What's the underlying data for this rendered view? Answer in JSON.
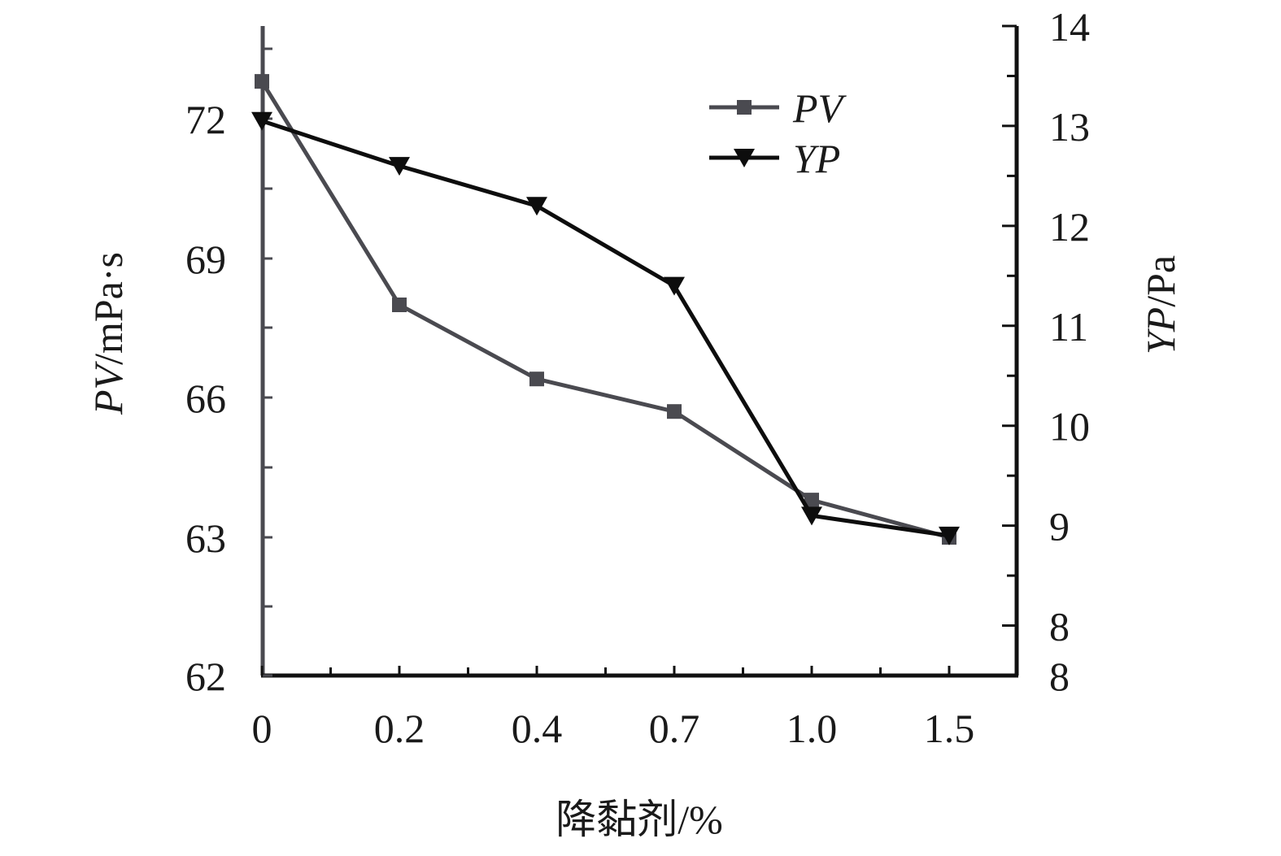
{
  "chart_data": {
    "type": "line",
    "x_categories": [
      "0",
      "0.2",
      "0.4",
      "0.7",
      "1.0",
      "1.5"
    ],
    "xlabel": "降黏剂/%",
    "left_axis": {
      "label_italic": "PV",
      "label_rest": "/mPa·s",
      "tick_labels": [
        "62",
        "63",
        "66",
        "69",
        "72"
      ],
      "tick_values": [
        62,
        63,
        66,
        69,
        72
      ]
    },
    "right_axis": {
      "label_italic": "YP",
      "label_rest": "/Pa",
      "tick_labels": [
        "8",
        "8",
        "9",
        "10",
        "11",
        "12",
        "13",
        "14"
      ],
      "tick_values": [
        7.5,
        8,
        9,
        10,
        11,
        12,
        13,
        14
      ]
    },
    "series": [
      {
        "name": "PV",
        "axis": "left",
        "marker": "square",
        "color": "#4a4a50",
        "values": [
          72.8,
          68.0,
          66.4,
          65.7,
          63.8,
          63.0
        ]
      },
      {
        "name": "YP",
        "axis": "right",
        "marker": "triangle-down",
        "color": "#0d0d0d",
        "values": [
          13.05,
          12.6,
          12.2,
          11.4,
          9.1,
          8.9
        ]
      }
    ],
    "legend_position": "top-right",
    "grid": false
  }
}
